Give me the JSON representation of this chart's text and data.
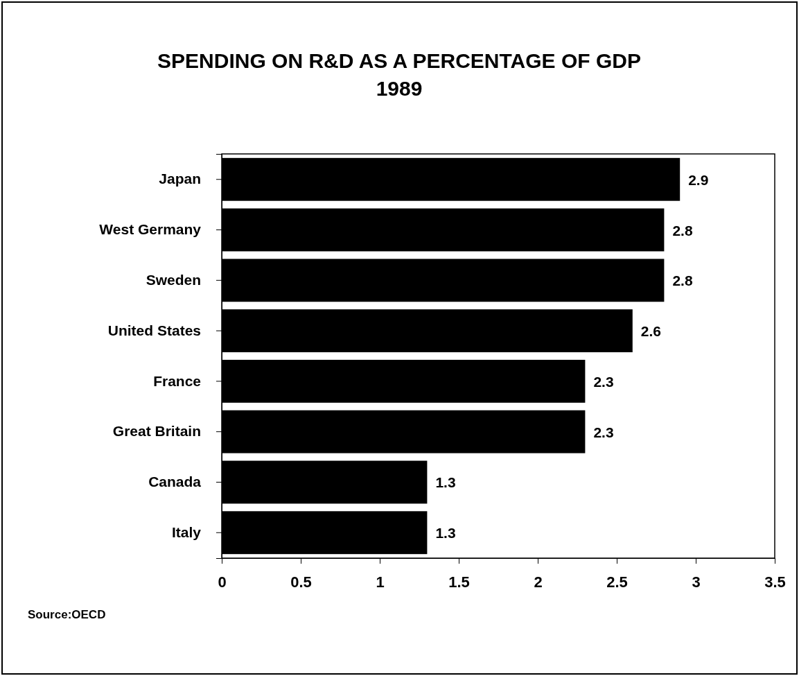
{
  "chart_data": {
    "type": "bar",
    "orientation": "horizontal",
    "title": "SPENDING ON R&D AS A PERCENTAGE OF GDP",
    "subtitle": "1989",
    "categories": [
      "Japan",
      "West Germany",
      "Sweden",
      "United States",
      "France",
      "Great Britain",
      "Canada",
      "Italy"
    ],
    "values": [
      2.9,
      2.8,
      2.8,
      2.6,
      2.3,
      2.3,
      1.3,
      1.3
    ],
    "color": "#000000",
    "xlim": [
      0,
      3.5
    ],
    "xticks": [
      0,
      0.5,
      1,
      1.5,
      2,
      2.5,
      3,
      3.5
    ],
    "grid": false,
    "data_labels": true,
    "annotations": [
      "Source:OECD"
    ]
  }
}
